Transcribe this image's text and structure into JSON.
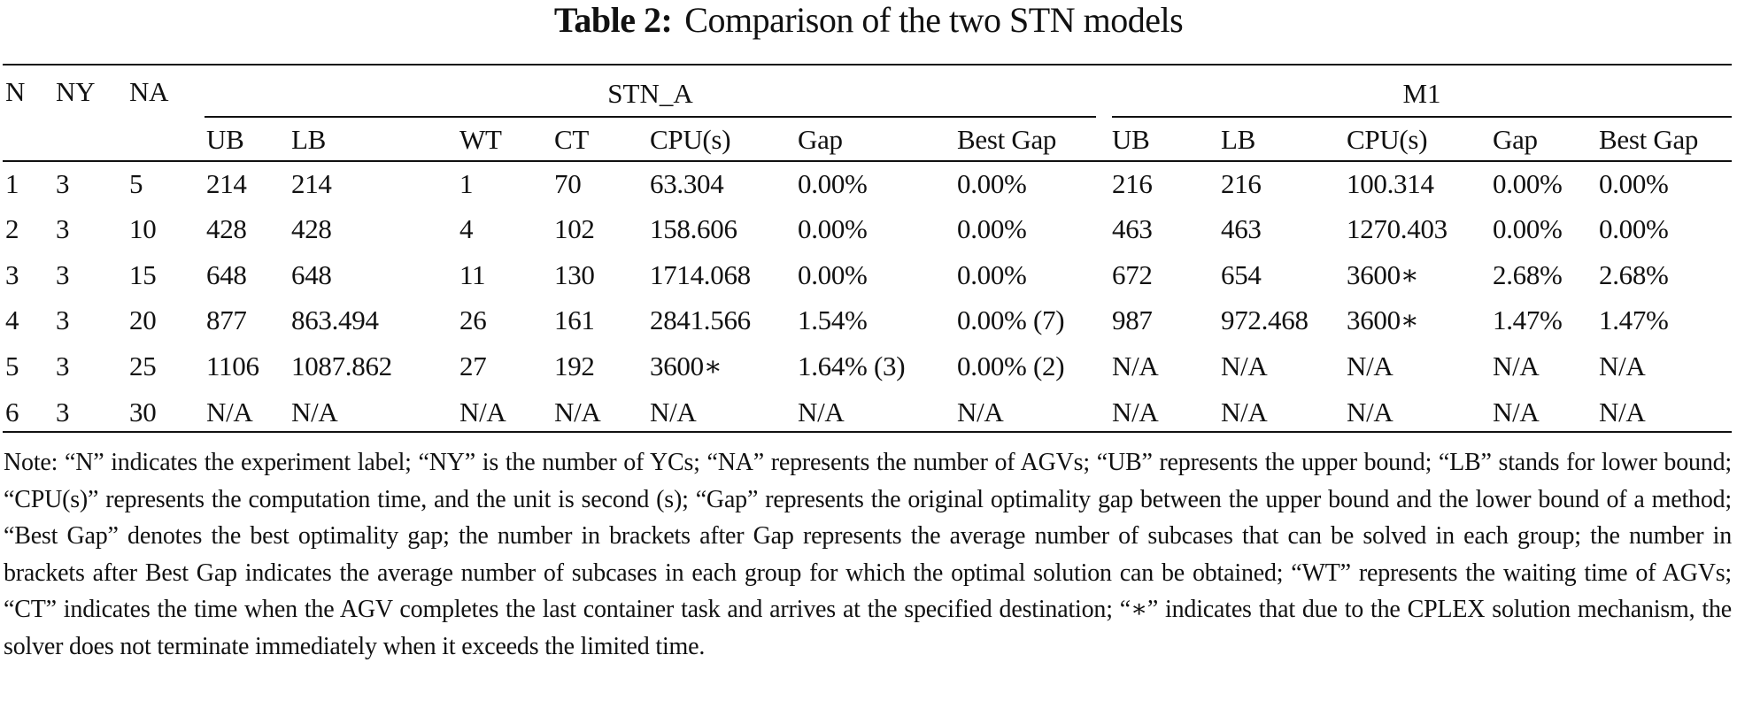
{
  "caption": {
    "label": "Table 2:",
    "text": "Comparison of the two STN models"
  },
  "table": {
    "row_headers": [
      "N",
      "NY",
      "NA"
    ],
    "groups": [
      {
        "name": "STN_A",
        "columns": [
          "UB",
          "LB",
          "WT",
          "CT",
          "CPU(s)",
          "Gap",
          "Best Gap"
        ]
      },
      {
        "name": "M1",
        "columns": [
          "UB",
          "LB",
          "CPU(s)",
          "Gap",
          "Best Gap"
        ]
      }
    ],
    "rows": [
      {
        "N": "1",
        "NY": "3",
        "NA": "5",
        "stn_a": [
          "214",
          "214",
          "1",
          "70",
          "63.304",
          "0.00%",
          "0.00%"
        ],
        "m1": [
          "216",
          "216",
          "100.314",
          "0.00%",
          "0.00%"
        ]
      },
      {
        "N": "2",
        "NY": "3",
        "NA": "10",
        "stn_a": [
          "428",
          "428",
          "4",
          "102",
          "158.606",
          "0.00%",
          "0.00%"
        ],
        "m1": [
          "463",
          "463",
          "1270.403",
          "0.00%",
          "0.00%"
        ]
      },
      {
        "N": "3",
        "NY": "3",
        "NA": "15",
        "stn_a": [
          "648",
          "648",
          "11",
          "130",
          "1714.068",
          "0.00%",
          "0.00%"
        ],
        "m1": [
          "672",
          "654",
          "3600∗",
          "2.68%",
          "2.68%"
        ]
      },
      {
        "N": "4",
        "NY": "3",
        "NA": "20",
        "stn_a": [
          "877",
          "863.494",
          "26",
          "161",
          "2841.566",
          "1.54%",
          "0.00% (7)"
        ],
        "m1": [
          "987",
          "972.468",
          "3600∗",
          "1.47%",
          "1.47%"
        ]
      },
      {
        "N": "5",
        "NY": "3",
        "NA": "25",
        "stn_a": [
          "1106",
          "1087.862",
          "27",
          "192",
          "3600∗",
          "1.64% (3)",
          "0.00% (2)"
        ],
        "m1": [
          "N/A",
          "N/A",
          "N/A",
          "N/A",
          "N/A"
        ]
      },
      {
        "N": "6",
        "NY": "3",
        "NA": "30",
        "stn_a": [
          "N/A",
          "N/A",
          "N/A",
          "N/A",
          "N/A",
          "N/A",
          "N/A"
        ],
        "m1": [
          "N/A",
          "N/A",
          "N/A",
          "N/A",
          "N/A"
        ]
      }
    ]
  },
  "note": "Note: “N” indicates the experiment label; “NY” is the number of YCs; “NA” represents the number of AGVs; “UB” represents the upper bound; “LB” stands for lower bound; “CPU(s)” represents the computation time, and the unit is second (s); “Gap” represents the original optimality gap between the upper bound and the lower bound of a method; “Best Gap” denotes the best optimality gap; the number in brackets after Gap represents the average number of subcases that can be solved in each group; the number in brackets after Best Gap indicates the average number of subcases in each group for which the optimal solution can be obtained; “WT” represents the waiting time of AGVs; “CT” indicates the time when the AGV completes the last container task and arrives at the specified destination; “∗” indicates that due to the CPLEX solution mechanism, the solver does not terminate immediately when it exceeds the limited time."
}
